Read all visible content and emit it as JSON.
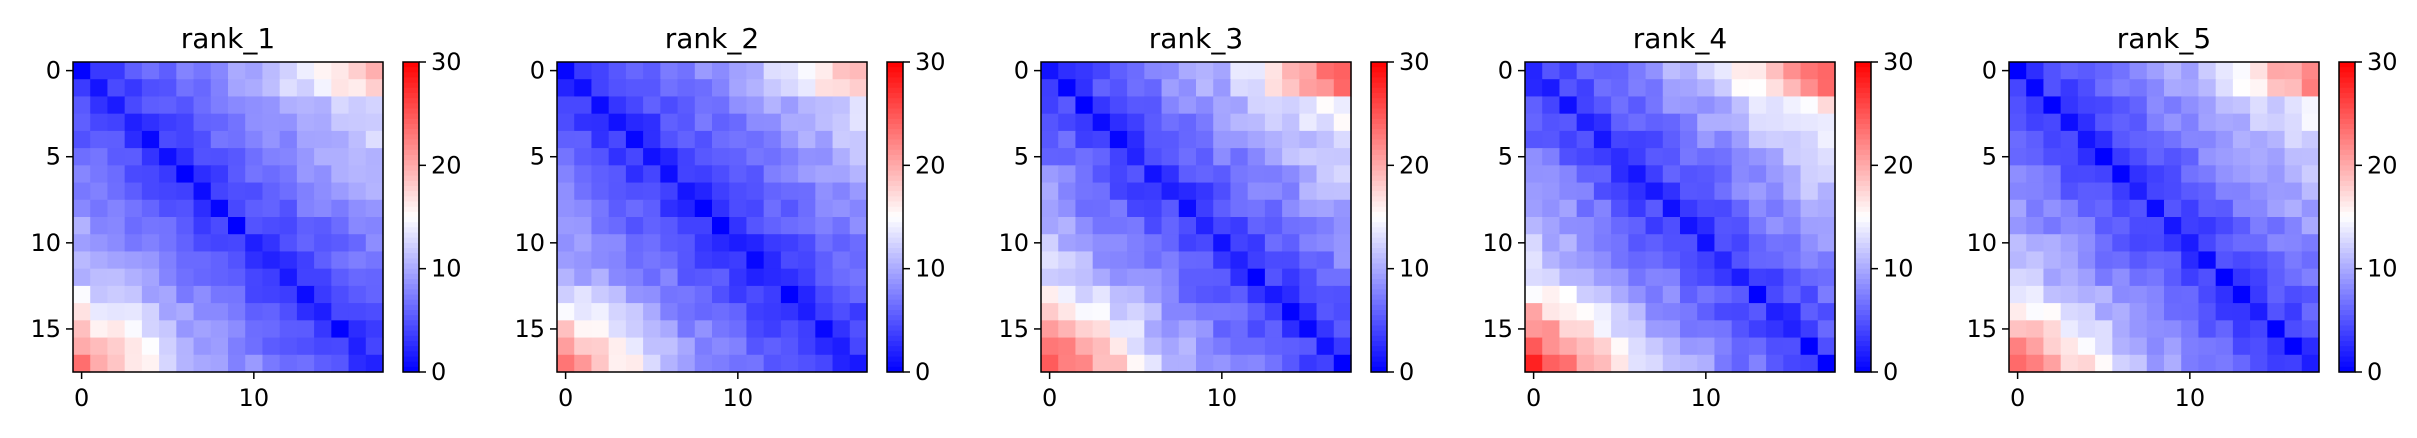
{
  "chart_data": [
    {
      "type": "heatmap",
      "title": "rank_1",
      "xticks": [
        0,
        10
      ],
      "yticks": [
        0,
        5,
        10,
        15
      ],
      "colorbar_ticks": [
        0,
        10,
        20,
        30
      ],
      "vmin": 0,
      "vmax": 30,
      "colormap": "bwr",
      "size": 18,
      "params": {
        "base": 3,
        "k": 0.7,
        "top": 5,
        "bottom": 9,
        "noise": 1.2,
        "seed": 11
      }
    },
    {
      "type": "heatmap",
      "title": "rank_2",
      "xticks": [
        0,
        10
      ],
      "yticks": [
        0,
        5,
        10,
        15
      ],
      "colorbar_ticks": [
        0,
        10,
        20,
        30
      ],
      "vmin": 0,
      "vmax": 30,
      "colormap": "bwr",
      "size": 18,
      "params": {
        "base": 2.5,
        "k": 0.7,
        "top": 6,
        "bottom": 10,
        "noise": 1.2,
        "seed": 23
      }
    },
    {
      "type": "heatmap",
      "title": "rank_3",
      "xticks": [
        0,
        10
      ],
      "yticks": [
        0,
        5,
        10,
        15
      ],
      "colorbar_ticks": [
        0,
        10,
        20,
        30
      ],
      "vmin": 0,
      "vmax": 30,
      "colormap": "bwr",
      "size": 18,
      "params": {
        "base": 3,
        "k": 0.8,
        "top": 9,
        "bottom": 11,
        "noise": 1.5,
        "seed": 37
      }
    },
    {
      "type": "heatmap",
      "title": "rank_4",
      "xticks": [
        0,
        10
      ],
      "yticks": [
        0,
        5,
        10,
        15
      ],
      "colorbar_ticks": [
        0,
        10,
        20,
        30
      ],
      "vmin": 0,
      "vmax": 30,
      "colormap": "bwr",
      "size": 18,
      "params": {
        "base": 3,
        "k": 0.85,
        "top": 7,
        "bottom": 12,
        "noise": 1.5,
        "seed": 41
      }
    },
    {
      "type": "heatmap",
      "title": "rank_5",
      "xticks": [
        0,
        10
      ],
      "yticks": [
        0,
        5,
        10,
        15
      ],
      "colorbar_ticks": [
        0,
        10,
        20,
        30
      ],
      "vmin": 0,
      "vmax": 30,
      "colormap": "bwr",
      "size": 18,
      "params": {
        "base": 3,
        "k": 0.75,
        "top": 8,
        "bottom": 10,
        "noise": 1.3,
        "seed": 53
      }
    }
  ],
  "colors": {
    "low": "#0000ff",
    "mid": "#ffffff",
    "high": "#ff0000"
  }
}
